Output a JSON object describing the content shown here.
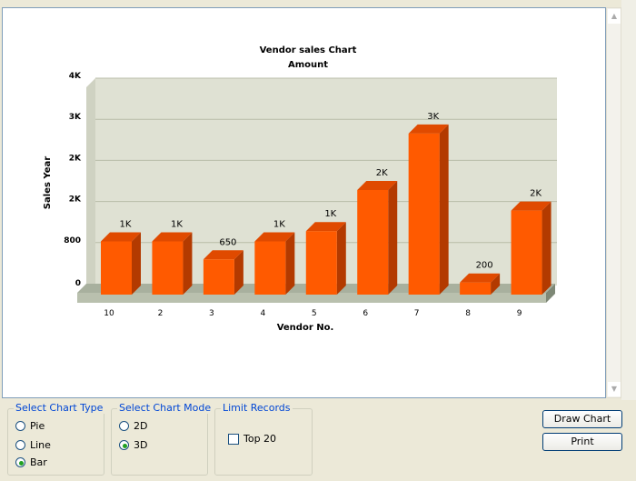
{
  "chart_data": {
    "type": "bar",
    "title": "Vendor sales Chart",
    "subtitle": "Amount",
    "xlabel": "Vendor No.",
    "ylabel": "Sales Year",
    "categories": [
      "10",
      "2",
      "3",
      "4",
      "5",
      "6",
      "7",
      "8",
      "9"
    ],
    "values": [
      1000,
      1000,
      650,
      1000,
      1200,
      2000,
      3100,
      200,
      1600
    ],
    "value_labels": [
      "1K",
      "1K",
      "650",
      "1K",
      "1K",
      "2K",
      "3K",
      "200",
      "2K"
    ],
    "y_ticks": [
      0,
      800,
      1600,
      2400,
      3200,
      4000
    ],
    "y_tick_labels": [
      "0",
      "800",
      "2K",
      "2K",
      "3K",
      "4K"
    ],
    "ylim": [
      0,
      4000
    ],
    "grid": true,
    "three_d": true,
    "colors": {
      "bar_front": "#ff5a00",
      "bar_side": "#b33a00",
      "bar_top": "#e04a00",
      "plot_bg": "#dfe1d3",
      "floor": "#a8b09e",
      "floor_edge": "#7e8876",
      "grid": "#b8bca8"
    }
  },
  "chart_type_group": {
    "title": "Select Chart Type",
    "options": [
      {
        "label": "Pie",
        "checked": false
      },
      {
        "label": "Line",
        "checked": false
      },
      {
        "label": "Bar",
        "checked": true
      }
    ]
  },
  "chart_mode_group": {
    "title": "Select Chart Mode",
    "options": [
      {
        "label": "2D",
        "checked": false
      },
      {
        "label": "3D",
        "checked": true
      }
    ]
  },
  "limit_group": {
    "title": "Limit Records",
    "checkbox_label": "Top 20",
    "checked": false
  },
  "buttons": {
    "draw": "Draw Chart",
    "print": "Print"
  }
}
